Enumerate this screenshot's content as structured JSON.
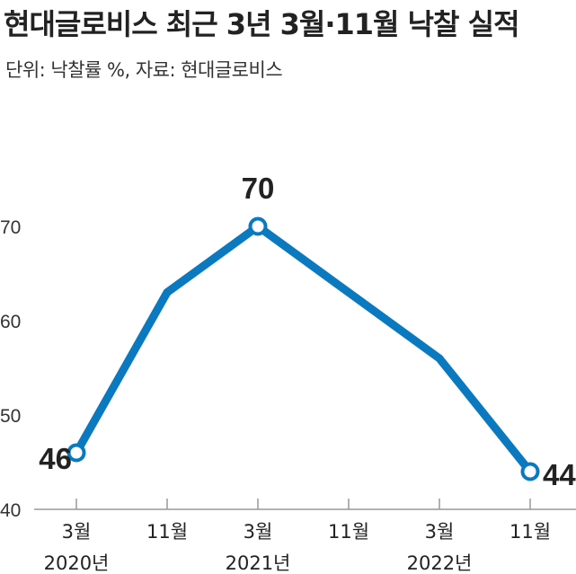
{
  "title": "현대글로비스 최근 3년 3월·11월 낙찰 실적",
  "subtitle": "단위: 낙찰률 %, 자료: 현대글로비스",
  "colors": {
    "line": "#0b79c0",
    "marker_fill": "#ffffff",
    "axis": "#999999"
  },
  "chart_data": {
    "type": "line",
    "title": "현대글로비스 최근 3년 3월·11월 낙찰 실적",
    "subtitle": "단위: 낙찰률 %, 자료: 현대글로비스",
    "categories": [
      "3월",
      "11월",
      "3월",
      "11월",
      "3월",
      "11월"
    ],
    "years": [
      {
        "label": "2020년",
        "category_index": 0
      },
      {
        "label": "2021년",
        "category_index": 2
      },
      {
        "label": "2022년",
        "category_index": 4
      }
    ],
    "values": [
      46,
      63,
      70,
      63,
      56,
      44
    ],
    "data_labels": [
      {
        "index": 0,
        "text": "46"
      },
      {
        "index": 2,
        "text": "70"
      },
      {
        "index": 5,
        "text": "44"
      }
    ],
    "markers_at": [
      0,
      2,
      5
    ],
    "yticks": [
      40,
      50,
      60,
      70
    ],
    "ylim": [
      40,
      75
    ],
    "grid": false,
    "legend": "none"
  }
}
